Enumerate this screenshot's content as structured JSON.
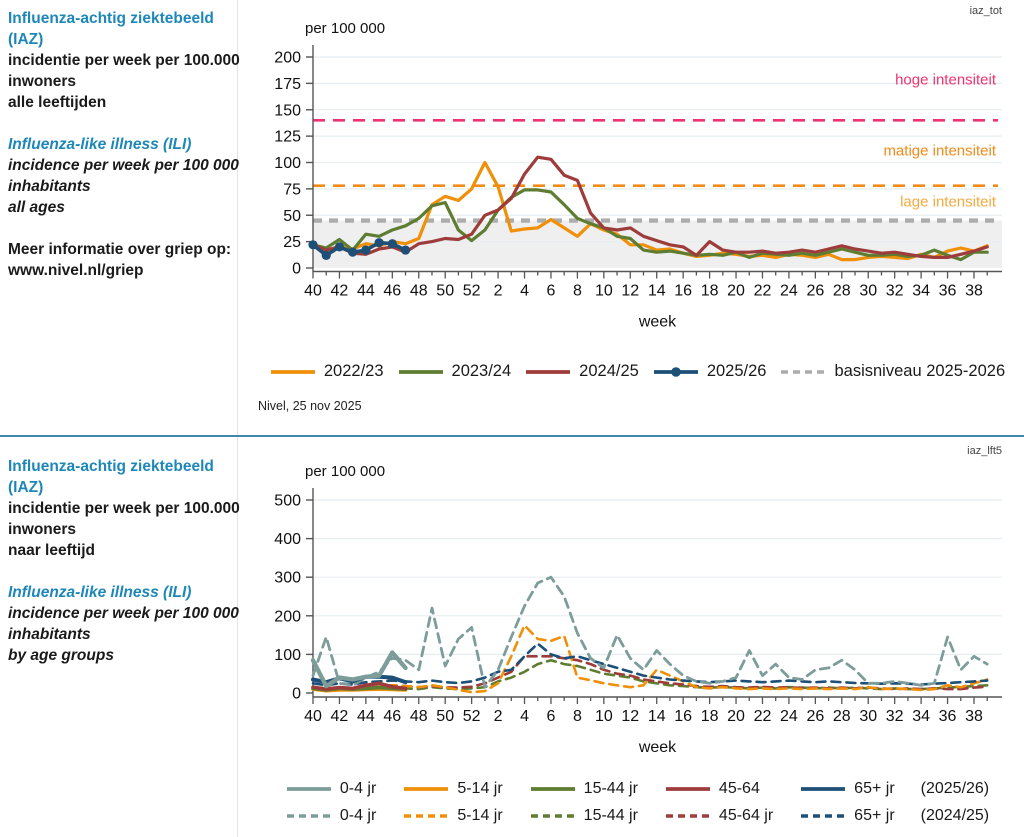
{
  "top_panel": {
    "info": {
      "title_nl": "Influenza-achtig ziektebeeld (IAZ)",
      "line1_nl": "incidentie per week per 100.000",
      "line2_nl": "inwoners",
      "line3_nl": "alle leeftijden",
      "title_en": "Influenza-like illness (ILI)",
      "line1_en": "incidence per week per 100 000",
      "line2_en": "inhabitants",
      "line3_en": "all ages",
      "more_info_label": "Meer informatie over griep op:",
      "more_info_link": "www.nivel.nl/griep"
    },
    "source_note": "Nivel, 25 nov 2025"
  },
  "bottom_panel": {
    "info": {
      "title_nl": "Influenza-achtig ziektebeeld (IAZ)",
      "line1_nl": "incidentie per week per 100.000",
      "line2_nl": "inwoners",
      "line3_nl": "naar leeftijd",
      "title_en": "Influenza-like illness (ILI)",
      "line1_en": "incidence per week per 100 000",
      "line2_en": "inhabitants",
      "line3_en": "by age groups"
    }
  },
  "chart_data": [
    {
      "type": "line",
      "id": "top",
      "corner_tag": "iaz_tot",
      "unit_label": "per 100 000",
      "xlabel": "week",
      "ylabel": "per 100 000",
      "ylim": [
        0,
        200
      ],
      "ytick_step": 25,
      "grid": true,
      "x_weeks": [
        40,
        41,
        42,
        43,
        44,
        45,
        46,
        47,
        48,
        49,
        50,
        51,
        52,
        1,
        2,
        3,
        4,
        5,
        6,
        7,
        8,
        9,
        10,
        11,
        12,
        13,
        14,
        15,
        16,
        17,
        18,
        19,
        20,
        21,
        22,
        23,
        24,
        25,
        26,
        27,
        28,
        29,
        30,
        31,
        32,
        33,
        34,
        35,
        36,
        37,
        38,
        39
      ],
      "thresholds": [
        {
          "label": "hoge intensiteit",
          "value": 140,
          "color": "#f0336e",
          "width": 2.6,
          "dasharray": "12 8",
          "label_offset": -36
        },
        {
          "label": "matige intensiteit",
          "value": 78,
          "color": "#f28a18",
          "width": 2.6,
          "dasharray": "12 8",
          "label_offset": -30
        },
        {
          "label": "lage intensiteit",
          "value": 45,
          "color": "#adadad",
          "label_color": "#f5a93f",
          "width": 4.4,
          "dasharray": "9 7",
          "label_offset": -14,
          "shade_below": true
        }
      ],
      "series": [
        {
          "name": "2022/23",
          "color": "#ef9008",
          "width": 3.2,
          "values": [
            20,
            16,
            21,
            18,
            23,
            21,
            25,
            23,
            28,
            60,
            68,
            64,
            75,
            100,
            77,
            35,
            37,
            38,
            46,
            38,
            30,
            42,
            36,
            32,
            22,
            22,
            17,
            18,
            14,
            11,
            12,
            14,
            13,
            11,
            12,
            10,
            13,
            12,
            10,
            13,
            8,
            8,
            10,
            11,
            10,
            9,
            13,
            10,
            16,
            19,
            16,
            21
          ]
        },
        {
          "name": "2023/24",
          "color": "#5e7d31",
          "width": 3.2,
          "values": [
            22,
            19,
            27,
            17,
            32,
            30,
            36,
            40,
            47,
            59,
            62,
            36,
            26,
            36,
            55,
            67,
            74,
            74,
            72,
            60,
            47,
            42,
            38,
            30,
            28,
            17,
            15,
            16,
            14,
            12,
            13,
            12,
            15,
            10,
            14,
            13,
            12,
            14,
            12,
            15,
            18,
            15,
            12,
            12,
            13,
            11,
            12,
            17,
            12,
            8,
            15,
            15
          ]
        },
        {
          "name": "2024/25",
          "color": "#9e3b3b",
          "width": 3.2,
          "values": [
            22,
            17,
            20,
            14,
            13,
            18,
            20,
            15,
            23,
            25,
            28,
            27,
            32,
            50,
            55,
            66,
            89,
            105,
            103,
            88,
            83,
            52,
            38,
            36,
            38,
            30,
            26,
            22,
            20,
            12,
            25,
            17,
            15,
            15,
            16,
            14,
            15,
            17,
            15,
            18,
            21,
            18,
            16,
            14,
            15,
            13,
            11,
            10,
            10,
            13,
            16,
            20
          ]
        },
        {
          "name": "2025/26",
          "color": "#1d4f77",
          "width": 3.6,
          "marker": true,
          "values": [
            22,
            12,
            20,
            15,
            17,
            24,
            23,
            17
          ]
        }
      ],
      "legend": [
        {
          "label": "2022/23",
          "color": "#ef9008",
          "style": "solid"
        },
        {
          "label": "2023/24",
          "color": "#5e7d31",
          "style": "solid"
        },
        {
          "label": "2024/25",
          "color": "#9e3b3b",
          "style": "solid"
        },
        {
          "label": "2025/26",
          "color": "#1d4f77",
          "style": "solid-marker"
        },
        {
          "label": "basisniveau 2025-2026",
          "color": "#ababab",
          "style": "dashed"
        }
      ]
    },
    {
      "type": "line",
      "id": "bottom",
      "corner_tag": "iaz_lft5",
      "unit_label": "per 100 000",
      "xlabel": "week",
      "ylabel": "per 100 000",
      "ylim": [
        0,
        500
      ],
      "ytick_step": 100,
      "grid": true,
      "x_weeks": [
        40,
        41,
        42,
        43,
        44,
        45,
        46,
        47,
        48,
        49,
        50,
        51,
        52,
        1,
        2,
        3,
        4,
        5,
        6,
        7,
        8,
        9,
        10,
        11,
        12,
        13,
        14,
        15,
        16,
        17,
        18,
        19,
        20,
        21,
        22,
        23,
        24,
        25,
        26,
        27,
        28,
        29,
        30,
        31,
        32,
        33,
        34,
        35,
        36,
        37,
        38,
        39
      ],
      "series": [
        {
          "name": "15-44 jr",
          "season": "2024/25",
          "color": "#5e7d31",
          "width": 2.6,
          "dash": true,
          "values": [
            10,
            12,
            8,
            8,
            10,
            12,
            14,
            12,
            10,
            15,
            12,
            10,
            12,
            15,
            30,
            40,
            55,
            75,
            85,
            75,
            70,
            60,
            50,
            45,
            40,
            30,
            25,
            20,
            18,
            15,
            14,
            15,
            14,
            12,
            14,
            12,
            15,
            14,
            12,
            14,
            12,
            14,
            12,
            10,
            12,
            10,
            10,
            12,
            14,
            16,
            18,
            20
          ]
        },
        {
          "name": "45-64 jr",
          "season": "2024/25",
          "color": "#9e3b3b",
          "width": 2.6,
          "dash": true,
          "values": [
            12,
            10,
            12,
            10,
            14,
            16,
            20,
            18,
            15,
            18,
            15,
            14,
            16,
            25,
            40,
            55,
            95,
            95,
            95,
            90,
            85,
            75,
            60,
            50,
            45,
            35,
            30,
            25,
            22,
            18,
            16,
            18,
            15,
            14,
            16,
            14,
            15,
            13,
            14,
            12,
            14,
            12,
            14,
            12,
            10,
            12,
            10,
            12,
            10,
            10,
            14,
            16
          ]
        },
        {
          "name": "5-14 jr",
          "season": "2024/25",
          "color": "#ef9008",
          "width": 2.6,
          "dash": true,
          "values": [
            12,
            15,
            10,
            8,
            12,
            15,
            20,
            18,
            15,
            20,
            15,
            8,
            2,
            5,
            25,
            95,
            175,
            140,
            135,
            148,
            40,
            33,
            25,
            20,
            15,
            20,
            60,
            45,
            30,
            15,
            12,
            15,
            12,
            10,
            12,
            10,
            12,
            10,
            12,
            10,
            12,
            10,
            15,
            10,
            12,
            10,
            8,
            10,
            20,
            15,
            25,
            35
          ]
        },
        {
          "name": "65+ jr",
          "season": "2024/25",
          "color": "#1d4f77",
          "width": 2.6,
          "dash": true,
          "values": [
            25,
            20,
            25,
            22,
            28,
            30,
            32,
            30,
            28,
            32,
            28,
            26,
            30,
            40,
            55,
            60,
            95,
            128,
            100,
            90,
            95,
            85,
            75,
            65,
            55,
            45,
            40,
            35,
            32,
            30,
            28,
            30,
            32,
            30,
            28,
            30,
            32,
            30,
            28,
            30,
            28,
            26,
            25,
            24,
            25,
            24,
            22,
            24,
            26,
            28,
            30,
            32
          ]
        },
        {
          "name": "0-4 jr",
          "season": "2024/25",
          "color": "#7d9d9b",
          "width": 2.8,
          "dash": true,
          "values": [
            45,
            145,
            25,
            20,
            40,
            55,
            90,
            85,
            60,
            220,
            70,
            140,
            170,
            15,
            60,
            145,
            225,
            285,
            300,
            250,
            155,
            90,
            65,
            150,
            90,
            60,
            110,
            75,
            45,
            30,
            25,
            30,
            40,
            110,
            45,
            75,
            40,
            35,
            60,
            65,
            85,
            60,
            25,
            25,
            30,
            25,
            20,
            25,
            145,
            60,
            95,
            75
          ]
        },
        {
          "name": "5-14 jr",
          "season": "2025/26",
          "color": "#ef9008",
          "width": 3.6,
          "values": [
            10,
            6,
            8,
            8,
            9,
            10,
            9,
            8
          ]
        },
        {
          "name": "15-44 jr",
          "season": "2025/26",
          "color": "#5e7d31",
          "width": 3.6,
          "values": [
            12,
            8,
            12,
            10,
            12,
            14,
            12,
            10
          ]
        },
        {
          "name": "45-64",
          "season": "2025/26",
          "color": "#9e3b3b",
          "width": 3.6,
          "values": [
            15,
            10,
            14,
            12,
            20,
            25,
            16,
            12
          ]
        },
        {
          "name": "65+ jr",
          "season": "2025/26",
          "color": "#1d4f77",
          "width": 4.0,
          "values": [
            35,
            28,
            38,
            30,
            42,
            42,
            40,
            28
          ]
        },
        {
          "name": "0-4 jr",
          "season": "2025/26",
          "color": "#7d9d9b",
          "width": 4.4,
          "values": [
            85,
            18,
            40,
            35,
            42,
            45,
            105,
            65
          ]
        }
      ],
      "legend_rows": [
        {
          "season": "(2025/26)",
          "dash": false,
          "items": [
            {
              "label": "0-4 jr",
              "color": "#7d9d9b"
            },
            {
              "label": "5-14 jr",
              "color": "#ef9008"
            },
            {
              "label": "15-44 jr",
              "color": "#5e7d31"
            },
            {
              "label": "45-64",
              "color": "#9e3b3b"
            },
            {
              "label": "65+ jr",
              "color": "#1d4f77"
            }
          ]
        },
        {
          "season": "(2024/25)",
          "dash": true,
          "items": [
            {
              "label": "0-4 jr",
              "color": "#7d9d9b"
            },
            {
              "label": "5-14 jr",
              "color": "#ef9008"
            },
            {
              "label": "15-44 jr",
              "color": "#5e7d31"
            },
            {
              "label": "45-64 jr",
              "color": "#9e3b3b"
            },
            {
              "label": "65+ jr",
              "color": "#1d4f77"
            }
          ]
        }
      ]
    }
  ]
}
